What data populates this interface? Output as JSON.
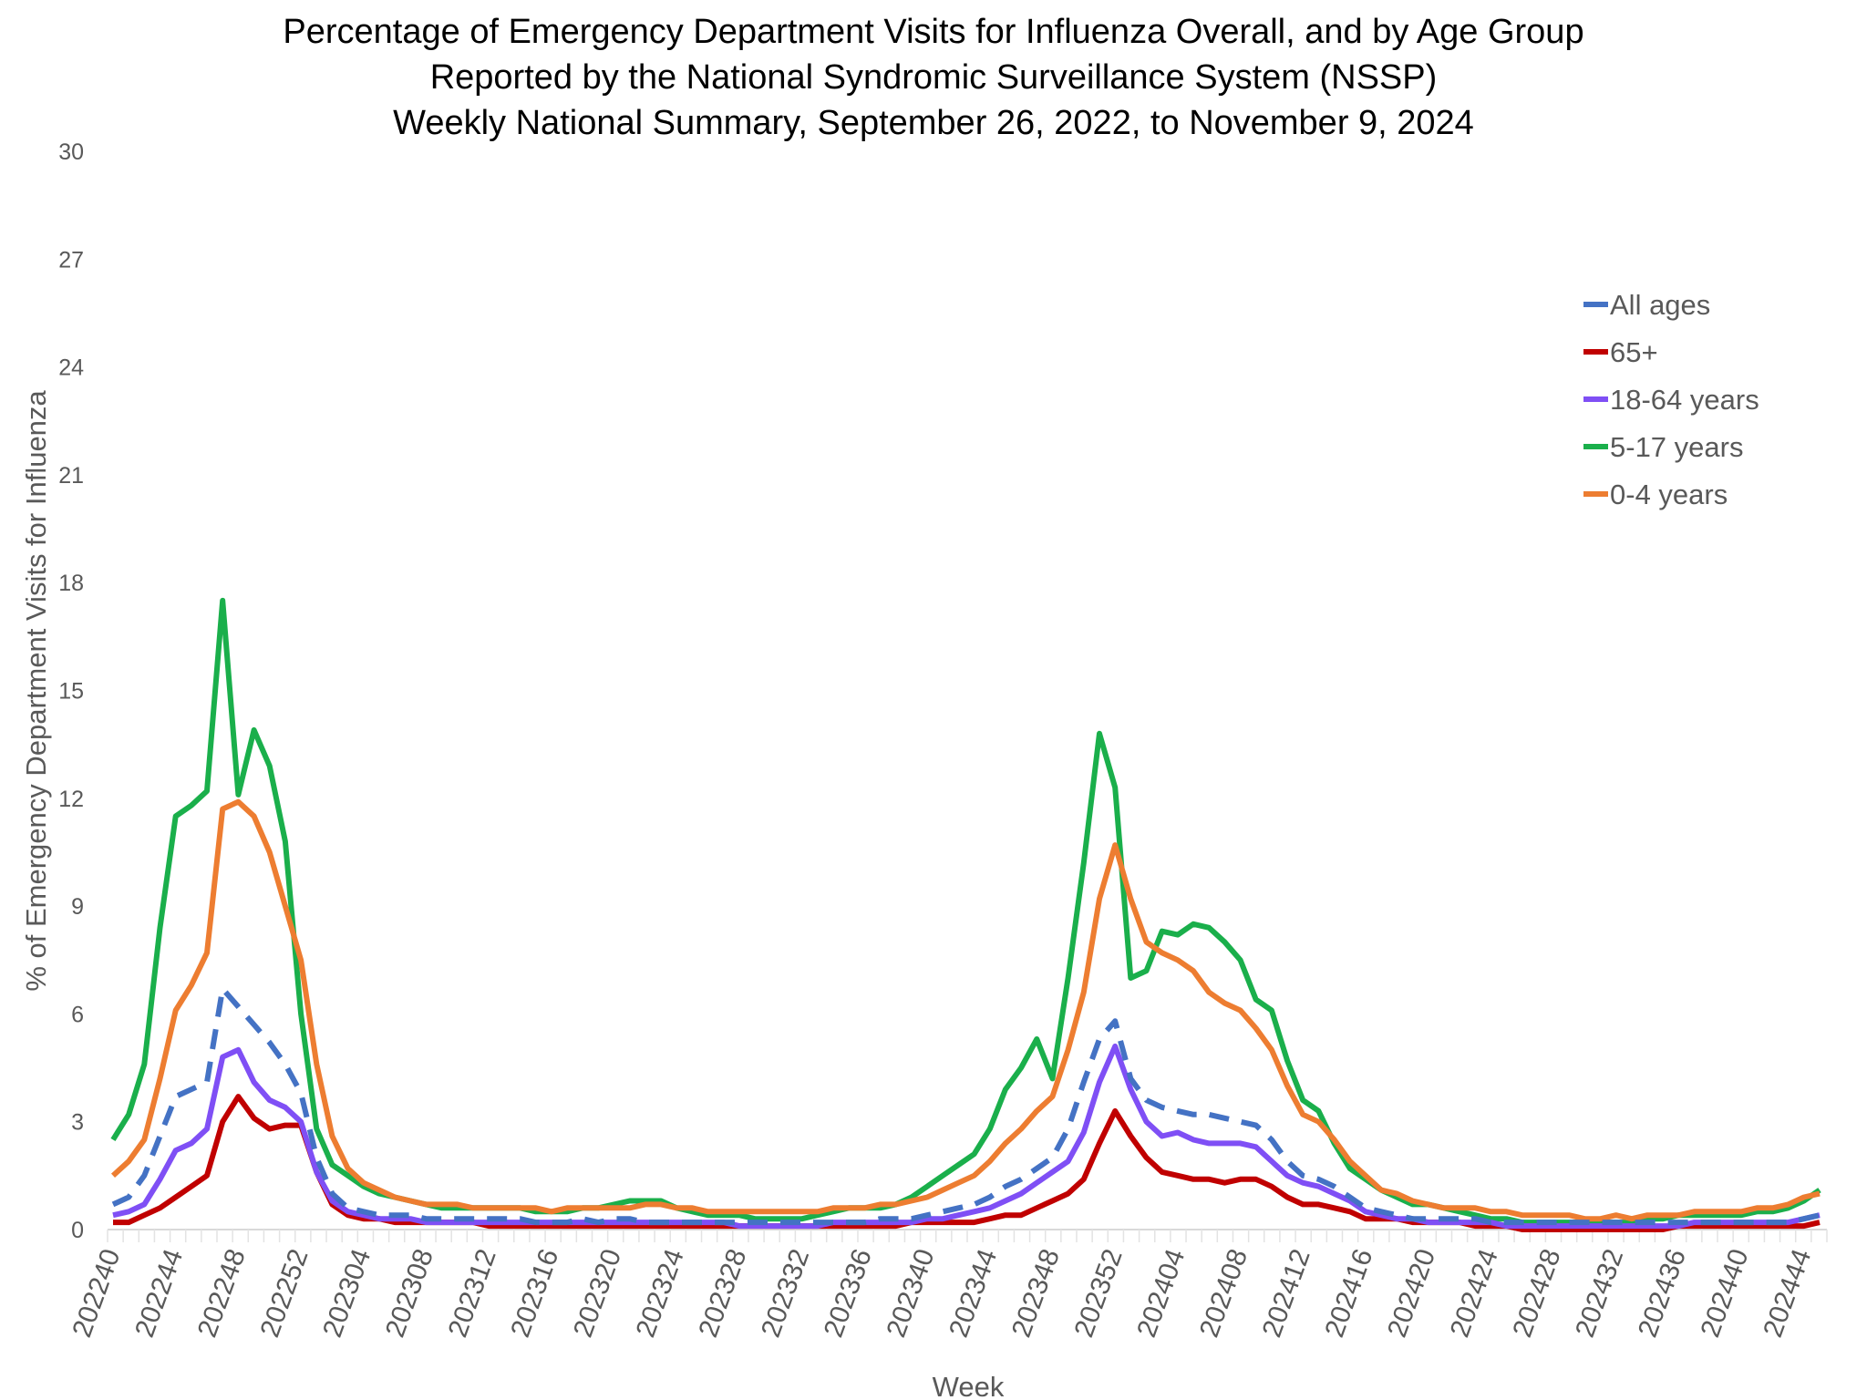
{
  "chart_data": {
    "type": "line",
    "title": [
      "Percentage of Emergency Department Visits for Influenza Overall, and by Age Group",
      "Reported by the National Syndromic Surveillance System (NSSP)",
      "Weekly National Summary, September 26, 2022, to November 9, 2024"
    ],
    "xlabel": "Week",
    "ylabel": "% of Emergency Department Visits for Influenza",
    "ylim": [
      0,
      30
    ],
    "yticks": [
      "0",
      "3",
      "6",
      "9",
      "12",
      "15",
      "18",
      "21",
      "24",
      "27",
      "30"
    ],
    "grid": false,
    "legend_position": "right",
    "x": [
      "202240",
      "202241",
      "202242",
      "202243",
      "202244",
      "202245",
      "202246",
      "202247",
      "202248",
      "202249",
      "202250",
      "202251",
      "202252",
      "202301",
      "202302",
      "202303",
      "202304",
      "202305",
      "202306",
      "202307",
      "202308",
      "202309",
      "202310",
      "202311",
      "202312",
      "202313",
      "202314",
      "202315",
      "202316",
      "202317",
      "202318",
      "202319",
      "202320",
      "202321",
      "202322",
      "202323",
      "202324",
      "202325",
      "202326",
      "202327",
      "202328",
      "202329",
      "202330",
      "202331",
      "202332",
      "202333",
      "202334",
      "202335",
      "202336",
      "202337",
      "202338",
      "202339",
      "202340",
      "202341",
      "202342",
      "202343",
      "202344",
      "202345",
      "202346",
      "202347",
      "202348",
      "202349",
      "202350",
      "202351",
      "202352",
      "202401",
      "202402",
      "202403",
      "202404",
      "202405",
      "202406",
      "202407",
      "202408",
      "202409",
      "202410",
      "202411",
      "202412",
      "202413",
      "202414",
      "202415",
      "202416",
      "202417",
      "202418",
      "202419",
      "202420",
      "202421",
      "202422",
      "202423",
      "202424",
      "202425",
      "202426",
      "202427",
      "202428",
      "202429",
      "202430",
      "202431",
      "202432",
      "202433",
      "202434",
      "202435",
      "202436",
      "202437",
      "202438",
      "202439",
      "202440",
      "202441",
      "202442",
      "202443",
      "202444",
      "202445"
    ],
    "xtick_labels": [
      "202240",
      "202244",
      "202248",
      "202252",
      "202304",
      "202308",
      "202312",
      "202316",
      "202320",
      "202324",
      "202328",
      "202332",
      "202336",
      "202340",
      "202344",
      "202348",
      "202352",
      "202404",
      "202408",
      "202412",
      "202416",
      "202420",
      "202424",
      "202428",
      "202432",
      "202436",
      "202440",
      "202444"
    ],
    "series": [
      {
        "name": "All ages",
        "color": "#4472C4",
        "dash": true,
        "values": [
          0.7,
          0.9,
          1.5,
          2.6,
          3.7,
          3.9,
          4.1,
          6.7,
          6.2,
          5.7,
          5.2,
          4.6,
          3.8,
          2.0,
          1.0,
          0.6,
          0.5,
          0.4,
          0.4,
          0.4,
          0.3,
          0.3,
          0.3,
          0.3,
          0.3,
          0.3,
          0.3,
          0.2,
          0.2,
          0.2,
          0.3,
          0.2,
          0.3,
          0.3,
          0.2,
          0.2,
          0.2,
          0.2,
          0.2,
          0.2,
          0.2,
          0.2,
          0.2,
          0.2,
          0.2,
          0.2,
          0.2,
          0.2,
          0.2,
          0.3,
          0.3,
          0.3,
          0.4,
          0.5,
          0.6,
          0.7,
          0.9,
          1.2,
          1.4,
          1.7,
          2.0,
          2.8,
          4.1,
          5.3,
          5.8,
          4.2,
          3.6,
          3.4,
          3.3,
          3.2,
          3.2,
          3.1,
          3.0,
          2.9,
          2.5,
          1.9,
          1.5,
          1.4,
          1.2,
          0.9,
          0.6,
          0.5,
          0.4,
          0.3,
          0.3,
          0.3,
          0.3,
          0.3,
          0.2,
          0.2,
          0.2,
          0.2,
          0.2,
          0.2,
          0.2,
          0.2,
          0.2,
          0.2,
          0.2,
          0.2,
          0.2,
          0.2,
          0.2,
          0.2,
          0.2,
          0.2,
          0.2,
          0.2,
          0.3,
          0.4
        ]
      },
      {
        "name": "65+",
        "color": "#C00000",
        "dash": false,
        "values": [
          0.2,
          0.2,
          0.4,
          0.6,
          0.9,
          1.2,
          1.5,
          3.0,
          3.7,
          3.1,
          2.8,
          2.9,
          2.9,
          1.6,
          0.7,
          0.4,
          0.3,
          0.3,
          0.2,
          0.2,
          0.2,
          0.2,
          0.2,
          0.2,
          0.1,
          0.1,
          0.1,
          0.1,
          0.1,
          0.1,
          0.1,
          0.1,
          0.1,
          0.1,
          0.1,
          0.1,
          0.1,
          0.1,
          0.1,
          0.1,
          0.1,
          0.1,
          0.1,
          0.1,
          0.1,
          0.1,
          0.1,
          0.1,
          0.1,
          0.1,
          0.1,
          0.2,
          0.2,
          0.2,
          0.2,
          0.2,
          0.3,
          0.4,
          0.4,
          0.6,
          0.8,
          1.0,
          1.4,
          2.4,
          3.3,
          2.6,
          2.0,
          1.6,
          1.5,
          1.4,
          1.4,
          1.3,
          1.4,
          1.4,
          1.2,
          0.9,
          0.7,
          0.7,
          0.6,
          0.5,
          0.3,
          0.3,
          0.3,
          0.2,
          0.2,
          0.2,
          0.2,
          0.1,
          0.1,
          0.1,
          0.0,
          0.0,
          0.0,
          0.0,
          0.0,
          0.0,
          0.0,
          0.0,
          0.0,
          0.0,
          0.1,
          0.1,
          0.1,
          0.1,
          0.1,
          0.1,
          0.1,
          0.1,
          0.1,
          0.2
        ]
      },
      {
        "name": "18-64 years",
        "color": "#7F4FF5",
        "dash": false,
        "values": [
          0.4,
          0.5,
          0.7,
          1.4,
          2.2,
          2.4,
          2.8,
          4.8,
          5.0,
          4.1,
          3.6,
          3.4,
          3.0,
          1.6,
          0.8,
          0.5,
          0.4,
          0.3,
          0.3,
          0.3,
          0.2,
          0.2,
          0.2,
          0.2,
          0.2,
          0.2,
          0.2,
          0.2,
          0.2,
          0.2,
          0.2,
          0.2,
          0.2,
          0.2,
          0.2,
          0.2,
          0.2,
          0.2,
          0.2,
          0.2,
          0.1,
          0.1,
          0.1,
          0.1,
          0.1,
          0.1,
          0.2,
          0.2,
          0.2,
          0.2,
          0.2,
          0.2,
          0.3,
          0.3,
          0.4,
          0.5,
          0.6,
          0.8,
          1.0,
          1.3,
          1.6,
          1.9,
          2.7,
          4.1,
          5.1,
          3.9,
          3.0,
          2.6,
          2.7,
          2.5,
          2.4,
          2.4,
          2.4,
          2.3,
          1.9,
          1.5,
          1.3,
          1.2,
          1.0,
          0.8,
          0.5,
          0.4,
          0.3,
          0.3,
          0.2,
          0.2,
          0.2,
          0.2,
          0.2,
          0.1,
          0.1,
          0.1,
          0.1,
          0.1,
          0.1,
          0.1,
          0.1,
          0.1,
          0.1,
          0.1,
          0.1,
          0.2,
          0.2,
          0.2,
          0.2,
          0.2,
          0.2,
          0.2,
          0.3,
          0.4
        ]
      },
      {
        "name": "5-17 years",
        "color": "#1AAF4B",
        "dash": false,
        "values": [
          2.5,
          3.2,
          4.6,
          8.4,
          11.5,
          11.8,
          12.2,
          17.5,
          12.1,
          13.9,
          12.9,
          10.8,
          6.0,
          2.8,
          1.8,
          1.5,
          1.2,
          1.0,
          0.9,
          0.8,
          0.7,
          0.6,
          0.6,
          0.6,
          0.6,
          0.6,
          0.6,
          0.5,
          0.5,
          0.5,
          0.6,
          0.6,
          0.7,
          0.8,
          0.8,
          0.8,
          0.6,
          0.5,
          0.4,
          0.4,
          0.4,
          0.3,
          0.3,
          0.3,
          0.3,
          0.4,
          0.5,
          0.6,
          0.6,
          0.6,
          0.7,
          0.9,
          1.2,
          1.5,
          1.8,
          2.1,
          2.8,
          3.9,
          4.5,
          5.3,
          4.2,
          7.0,
          10.2,
          13.8,
          12.3,
          7.0,
          7.2,
          8.3,
          8.2,
          8.5,
          8.4,
          8.0,
          7.5,
          6.4,
          6.1,
          4.7,
          3.6,
          3.3,
          2.4,
          1.7,
          1.4,
          1.1,
          0.9,
          0.7,
          0.7,
          0.6,
          0.5,
          0.4,
          0.3,
          0.3,
          0.2,
          0.2,
          0.2,
          0.2,
          0.2,
          0.2,
          0.2,
          0.2,
          0.3,
          0.3,
          0.4,
          0.4,
          0.4,
          0.4,
          0.4,
          0.5,
          0.5,
          0.6,
          0.8,
          1.1
        ]
      },
      {
        "name": "0-4 years",
        "color": "#ED7D31",
        "dash": false,
        "values": [
          1.5,
          1.9,
          2.5,
          4.2,
          6.1,
          6.8,
          7.7,
          11.7,
          11.9,
          11.5,
          10.5,
          9.0,
          7.5,
          4.6,
          2.6,
          1.7,
          1.3,
          1.1,
          0.9,
          0.8,
          0.7,
          0.7,
          0.7,
          0.6,
          0.6,
          0.6,
          0.6,
          0.6,
          0.5,
          0.6,
          0.6,
          0.6,
          0.6,
          0.6,
          0.7,
          0.7,
          0.6,
          0.6,
          0.5,
          0.5,
          0.5,
          0.5,
          0.5,
          0.5,
          0.5,
          0.5,
          0.6,
          0.6,
          0.6,
          0.7,
          0.7,
          0.8,
          0.9,
          1.1,
          1.3,
          1.5,
          1.9,
          2.4,
          2.8,
          3.3,
          3.7,
          5.0,
          6.6,
          9.2,
          10.7,
          9.2,
          8.0,
          7.7,
          7.5,
          7.2,
          6.6,
          6.3,
          6.1,
          5.6,
          5.0,
          4.0,
          3.2,
          3.0,
          2.5,
          1.9,
          1.5,
          1.1,
          1.0,
          0.8,
          0.7,
          0.6,
          0.6,
          0.6,
          0.5,
          0.5,
          0.4,
          0.4,
          0.4,
          0.4,
          0.3,
          0.3,
          0.4,
          0.3,
          0.4,
          0.4,
          0.4,
          0.5,
          0.5,
          0.5,
          0.5,
          0.6,
          0.6,
          0.7,
          0.9,
          1.0
        ]
      }
    ],
    "draw_order": [
      3,
      4,
      1,
      2,
      0
    ]
  }
}
